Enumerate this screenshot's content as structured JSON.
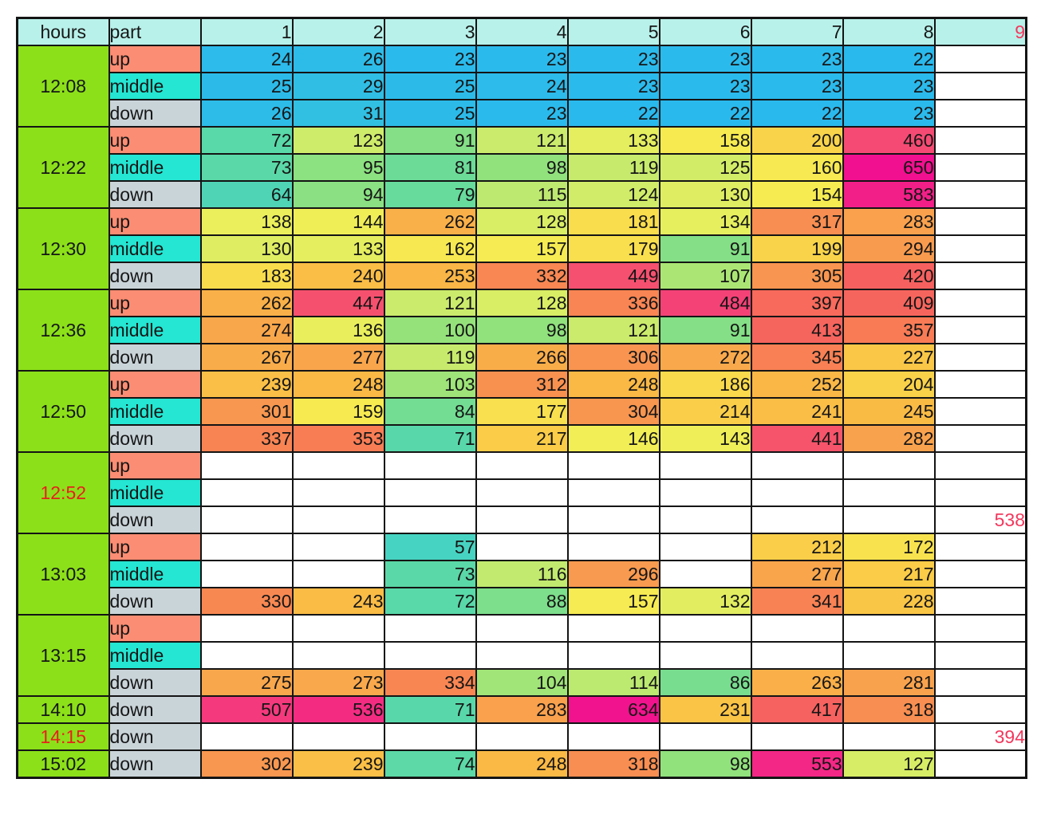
{
  "colors": {
    "header_bg": "#b8f1ea",
    "time_bg": "#8ce019",
    "part_bg": {
      "up": "#fa8d73",
      "middle": "#24e6d2",
      "down": "#c9d4d9"
    },
    "empty_bg": "#ffffff",
    "border": "#141414",
    "text": "#161616",
    "red_time_text": "#e8201e",
    "red_number_text": "#f4375c",
    "scale_stops": [
      [
        22,
        "#2ab9ed"
      ],
      [
        55,
        "#44d2c4"
      ],
      [
        75,
        "#5dd9a4"
      ],
      [
        90,
        "#82df87"
      ],
      [
        100,
        "#95e27b"
      ],
      [
        110,
        "#b4e873"
      ],
      [
        122,
        "#cdeb6b"
      ],
      [
        135,
        "#e8ef5d"
      ],
      [
        150,
        "#f5ee53"
      ],
      [
        165,
        "#f8e750"
      ],
      [
        190,
        "#f9d84b"
      ],
      [
        220,
        "#facb47"
      ],
      [
        250,
        "#fab845"
      ],
      [
        280,
        "#f9a34d"
      ],
      [
        310,
        "#f89250"
      ],
      [
        345,
        "#f88054"
      ],
      [
        380,
        "#f77159"
      ],
      [
        420,
        "#f6615f"
      ],
      [
        455,
        "#f54c72"
      ],
      [
        490,
        "#f44078"
      ],
      [
        540,
        "#f32a83"
      ],
      [
        600,
        "#f21a8a"
      ],
      [
        650,
        "#f1108f"
      ]
    ]
  },
  "chart_data": {
    "type": "heatmap",
    "title": "",
    "legend": "none",
    "grid": "black cell borders",
    "value_range": [
      22,
      650
    ],
    "header": {
      "hours_label": "hours",
      "part_label": "part",
      "column_labels": [
        "1",
        "2",
        "3",
        "4",
        "5",
        "6",
        "7",
        "8"
      ],
      "overflow_column_label": "9"
    },
    "groups": [
      {
        "time": "12:08",
        "red_time": false,
        "rows": [
          {
            "part": "up",
            "values": [
              24,
              26,
              23,
              23,
              23,
              23,
              23,
              22,
              null
            ]
          },
          {
            "part": "middle",
            "values": [
              25,
              29,
              25,
              24,
              23,
              23,
              23,
              23,
              null
            ]
          },
          {
            "part": "down",
            "values": [
              26,
              31,
              25,
              23,
              22,
              22,
              22,
              23,
              null
            ]
          }
        ]
      },
      {
        "time": "12:22",
        "red_time": false,
        "rows": [
          {
            "part": "up",
            "values": [
              72,
              123,
              91,
              121,
              133,
              158,
              200,
              460,
              null
            ]
          },
          {
            "part": "middle",
            "values": [
              73,
              95,
              81,
              98,
              119,
              125,
              160,
              650,
              null
            ]
          },
          {
            "part": "down",
            "values": [
              64,
              94,
              79,
              115,
              124,
              130,
              154,
              583,
              null
            ]
          }
        ]
      },
      {
        "time": "12:30",
        "red_time": false,
        "rows": [
          {
            "part": "up",
            "values": [
              138,
              144,
              262,
              128,
              181,
              134,
              317,
              283,
              null
            ]
          },
          {
            "part": "middle",
            "values": [
              130,
              133,
              162,
              157,
              179,
              91,
              199,
              294,
              null
            ]
          },
          {
            "part": "down",
            "values": [
              183,
              240,
              253,
              332,
              449,
              107,
              305,
              420,
              null
            ]
          }
        ]
      },
      {
        "time": "12:36",
        "red_time": false,
        "rows": [
          {
            "part": "up",
            "values": [
              262,
              447,
              121,
              128,
              336,
              484,
              397,
              409,
              null
            ]
          },
          {
            "part": "middle",
            "values": [
              274,
              136,
              100,
              98,
              121,
              91,
              413,
              357,
              null
            ]
          },
          {
            "part": "down",
            "values": [
              267,
              277,
              119,
              266,
              306,
              272,
              345,
              227,
              null
            ]
          }
        ]
      },
      {
        "time": "12:50",
        "red_time": false,
        "rows": [
          {
            "part": "up",
            "values": [
              239,
              248,
              103,
              312,
              248,
              186,
              252,
              204,
              null
            ]
          },
          {
            "part": "middle",
            "values": [
              301,
              159,
              84,
              177,
              304,
              214,
              241,
              245,
              null
            ]
          },
          {
            "part": "down",
            "values": [
              337,
              353,
              71,
              217,
              146,
              143,
              441,
              282,
              null
            ]
          }
        ]
      },
      {
        "time": "12:52",
        "red_time": true,
        "rows": [
          {
            "part": "up",
            "values": [
              null,
              null,
              null,
              null,
              null,
              null,
              null,
              null,
              null
            ]
          },
          {
            "part": "middle",
            "values": [
              null,
              null,
              null,
              null,
              null,
              null,
              null,
              null,
              null
            ]
          },
          {
            "part": "down",
            "values": [
              null,
              null,
              null,
              null,
              null,
              null,
              null,
              null,
              538
            ]
          }
        ]
      },
      {
        "time": "13:03",
        "red_time": false,
        "rows": [
          {
            "part": "up",
            "values": [
              null,
              null,
              57,
              null,
              null,
              null,
              212,
              172,
              null
            ]
          },
          {
            "part": "middle",
            "values": [
              null,
              null,
              73,
              116,
              296,
              null,
              277,
              217,
              null
            ]
          },
          {
            "part": "down",
            "values": [
              330,
              243,
              72,
              88,
              157,
              132,
              341,
              228,
              null
            ]
          }
        ]
      },
      {
        "time": "13:15",
        "red_time": false,
        "rows": [
          {
            "part": "up",
            "values": [
              null,
              null,
              null,
              null,
              null,
              null,
              null,
              null,
              null
            ]
          },
          {
            "part": "middle",
            "values": [
              null,
              null,
              null,
              null,
              null,
              null,
              null,
              null,
              null
            ]
          },
          {
            "part": "down",
            "values": [
              275,
              273,
              334,
              104,
              114,
              86,
              263,
              281,
              null
            ]
          }
        ]
      },
      {
        "time": "14:10",
        "red_time": false,
        "rows": [
          {
            "part": "down",
            "values": [
              507,
              536,
              71,
              283,
              634,
              231,
              417,
              318,
              null
            ]
          }
        ]
      },
      {
        "time": "14:15",
        "red_time": true,
        "rows": [
          {
            "part": "down",
            "values": [
              null,
              null,
              null,
              null,
              null,
              null,
              null,
              null,
              394
            ]
          }
        ]
      },
      {
        "time": "15:02",
        "red_time": false,
        "rows": [
          {
            "part": "down",
            "values": [
              302,
              239,
              74,
              248,
              318,
              98,
              553,
              127,
              null
            ]
          }
        ]
      }
    ]
  }
}
